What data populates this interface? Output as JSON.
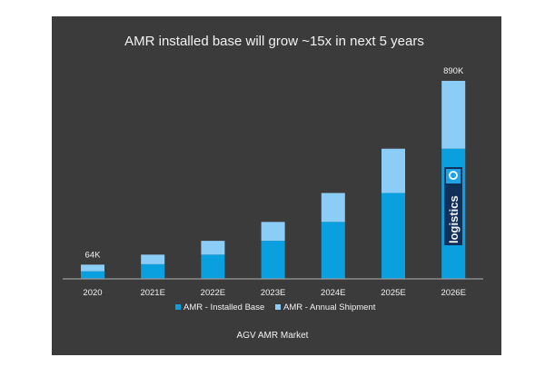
{
  "chart_data": {
    "type": "bar",
    "stacked": true,
    "title": "AMR installed base will grow ~15x in next 5 years",
    "xlabel": "AGV AMR Market",
    "ylabel": "",
    "unit": "K units",
    "categories": [
      "2020",
      "2021E",
      "2022E",
      "2023E",
      "2024E",
      "2025E",
      "2026E"
    ],
    "series": [
      {
        "name": "AMR - Installed Base",
        "color": "#0aa0e0",
        "values": [
          34,
          66,
          109,
          171,
          256,
          386,
          585
        ]
      },
      {
        "name": "AMR - Annual Shipment",
        "color": "#8ccdf7",
        "values": [
          30,
          43,
          62,
          85,
          130,
          199,
          305
        ]
      }
    ],
    "data_labels": [
      {
        "category": "2020",
        "text": "64K"
      },
      {
        "category": "2026E",
        "text": "890K"
      }
    ],
    "ylim": [
      0,
      890
    ],
    "grid": false,
    "legend_position": "bottom",
    "background": "#3b3b3b",
    "watermark": "logistics"
  }
}
